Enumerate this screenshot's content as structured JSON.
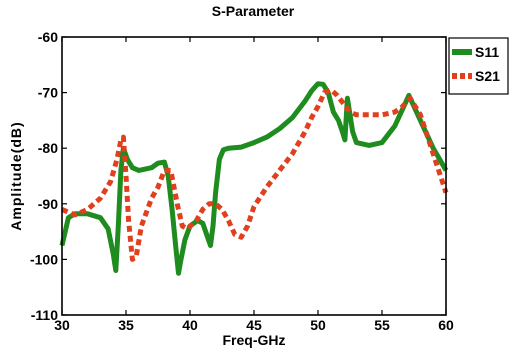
{
  "chart_data": {
    "type": "line",
    "title": "S-Parameter",
    "xlabel": "Freq-GHz",
    "ylabel": "Amplitude(dB)",
    "xlim": [
      30,
      60
    ],
    "ylim": [
      -110,
      -60
    ],
    "xticks": [
      30,
      35,
      40,
      45,
      50,
      55,
      60
    ],
    "yticks": [
      -110,
      -100,
      -90,
      -80,
      -70,
      -60
    ],
    "xtick_labels": [
      "30",
      "35",
      "40",
      "45",
      "50",
      "55",
      "60"
    ],
    "ytick_labels": [
      "-110",
      "-100",
      "-90",
      "-80",
      "-70",
      "-60"
    ],
    "grid": false,
    "legend_position": "top-right outside",
    "series": [
      {
        "name": "S11",
        "color": "#1e8c1e",
        "style": "solid",
        "x": [
          30,
          30.5,
          31,
          32,
          33,
          33.6,
          34.0,
          34.2,
          34.4,
          34.6,
          34.8,
          35.1,
          35.5,
          36,
          37,
          37.5,
          38,
          38.3,
          38.6,
          38.9,
          39.1,
          39.3,
          39.6,
          40,
          40.6,
          41.0,
          41.3,
          41.6,
          41.8,
          42.0,
          42.3,
          42.6,
          43,
          44,
          45,
          46,
          47,
          48,
          49,
          49.5,
          50,
          50.4,
          50.8,
          51.2,
          51.6,
          51.9,
          52.1,
          52.3,
          52.5,
          52.7,
          53,
          54,
          55,
          56,
          56.6,
          57.1,
          57.6,
          58.3,
          59,
          59.5,
          60
        ],
        "y": [
          -97.5,
          -92.5,
          -91.8,
          -91.8,
          -92.5,
          -94.5,
          -99,
          -102,
          -94,
          -84,
          -80,
          -82,
          -83.5,
          -84,
          -83.5,
          -82.7,
          -82.5,
          -85,
          -91,
          -98,
          -102.5,
          -100,
          -96.5,
          -94,
          -93,
          -93.5,
          -95.5,
          -97.5,
          -94,
          -88,
          -82,
          -80.3,
          -80,
          -79.8,
          -79,
          -78,
          -76.5,
          -74.5,
          -71.5,
          -69.7,
          -68.4,
          -68.5,
          -70,
          -73.5,
          -75,
          -77,
          -78.5,
          -71,
          -74,
          -77,
          -79,
          -79.5,
          -79,
          -76,
          -73,
          -70.5,
          -73,
          -76.5,
          -80,
          -82,
          -84
        ]
      },
      {
        "name": "S21",
        "color": "#e0401e",
        "style": "dashed",
        "x": [
          30,
          31,
          32,
          33,
          33.8,
          34.3,
          34.6,
          34.8,
          35.0,
          35.2,
          35.5,
          35.8,
          36.2,
          37,
          37.5,
          38,
          38.5,
          39,
          39.4,
          39.8,
          40.5,
          41,
          41.5,
          42,
          42.5,
          43,
          43.5,
          44,
          44.5,
          45,
          46,
          47,
          48,
          49,
          49.5,
          50,
          50.5,
          51,
          51.5,
          52,
          52.5,
          53,
          54,
          55,
          56,
          56.6,
          57.2,
          58,
          59,
          59.5,
          60
        ],
        "y": [
          -91,
          -92,
          -91,
          -89,
          -86,
          -82,
          -78.5,
          -78,
          -85,
          -93,
          -100,
          -99.5,
          -94,
          -89,
          -87,
          -84,
          -84,
          -90,
          -94,
          -94.5,
          -93,
          -91,
          -90,
          -90,
          -91,
          -93,
          -95.5,
          -96,
          -94,
          -90.5,
          -87,
          -84,
          -81,
          -77,
          -74.5,
          -72.5,
          -70,
          -69.5,
          -70.5,
          -72,
          -73.5,
          -74,
          -74,
          -74,
          -73.5,
          -72.5,
          -71,
          -74,
          -81,
          -84.5,
          -88
        ]
      }
    ]
  }
}
